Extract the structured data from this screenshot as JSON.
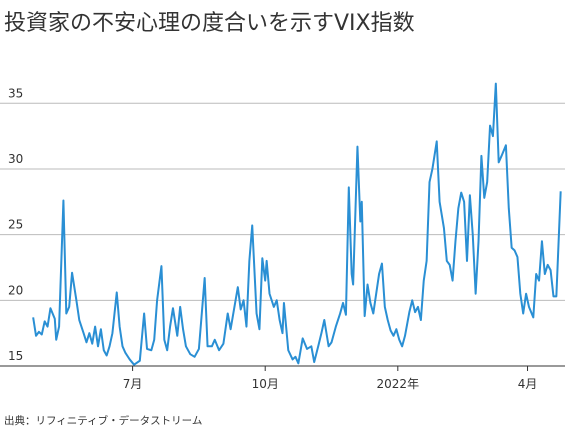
{
  "chart_data": {
    "type": "line",
    "title": "投資家の不安心理の度合いを示すVIX指数",
    "source": "出典：リフィニティブ・データストリーム",
    "x": [
      0,
      2,
      4,
      6,
      8,
      10,
      12,
      15,
      16,
      18,
      21,
      23,
      25,
      27,
      30,
      32,
      35,
      37,
      39,
      41,
      43,
      45,
      47,
      49,
      51,
      53,
      55,
      58,
      60,
      62,
      64,
      67,
      70,
      74,
      77,
      79,
      82,
      84,
      86,
      89,
      91,
      93,
      95,
      97,
      100,
      102,
      104,
      106,
      109,
      112,
      115,
      119,
      121,
      124,
      126,
      129,
      132,
      135,
      137,
      142,
      144,
      146,
      148,
      150,
      152,
      155,
      157,
      159,
      161,
      162,
      164,
      167,
      169,
      171,
      173,
      174,
      177,
      180,
      182,
      184,
      187,
      190,
      193,
      195,
      198,
      200,
      202,
      205,
      207,
      210,
      213,
      215,
      217,
      219,
      221,
      222,
      225,
      227,
      228,
      230,
      232,
      234,
      236,
      240,
      242,
      244,
      246,
      248,
      250,
      252,
      254,
      256,
      258,
      261,
      263,
      265,
      267,
      269,
      271,
      273,
      275,
      277,
      280,
      282,
      285,
      287,
      289,
      291,
      293,
      295,
      297,
      299,
      301,
      303,
      305,
      307,
      309,
      311,
      313,
      315,
      317,
      319,
      321,
      323,
      325,
      328,
      330,
      332,
      334,
      336,
      338,
      340,
      342,
      344,
      347,
      349,
      351,
      353,
      355,
      357,
      359,
      361,
      363,
      366
    ],
    "series": [
      {
        "name": "VIX",
        "color": "#2a8fd4",
        "values": [
          18.7,
          17.3,
          17.6,
          17.4,
          18.4,
          18,
          19.4,
          18.6,
          17,
          18,
          27.6,
          19,
          19.5,
          22.1,
          20,
          18.5,
          17.5,
          16.8,
          17.5,
          16.7,
          18,
          16.5,
          17.8,
          16.2,
          15.8,
          16.5,
          17.5,
          20.6,
          18,
          16.5,
          16,
          15.5,
          15.1,
          15.4,
          19,
          16.3,
          16.2,
          17,
          20,
          22.6,
          17,
          16.2,
          18,
          19.4,
          17.3,
          19.5,
          17.8,
          16.5,
          15.9,
          15.7,
          16.3,
          21.7,
          16.5,
          16.5,
          17,
          16.2,
          16.7,
          19,
          17.8,
          21,
          19.3,
          20,
          18,
          23,
          25.7,
          19,
          17.8,
          23.2,
          21.5,
          23,
          20.5,
          19.5,
          20,
          18.5,
          17.5,
          19.8,
          16.2,
          15.5,
          15.7,
          15.2,
          17.1,
          16.3,
          16.5,
          15.3,
          16.6,
          17.5,
          18.5,
          16.5,
          16.8,
          18,
          19,
          19.8,
          18.9,
          28.6,
          22,
          21.2,
          31.7,
          26,
          27.5,
          18.8,
          21.2,
          19.8,
          19,
          22,
          22.8,
          19.5,
          18.5,
          17.7,
          17.3,
          17.8,
          17,
          16.5,
          17.3,
          19.1,
          20,
          19.1,
          19.5,
          18.5,
          21.5,
          23,
          29,
          30,
          32.1,
          27.5,
          25.5,
          23,
          22.7,
          21.5,
          24.5,
          27,
          28.2,
          27.5,
          23,
          28,
          25,
          20.5,
          24.5,
          31,
          27.8,
          29,
          33.3,
          32.5,
          36.5,
          30.5,
          31,
          31.8,
          27,
          24,
          23.8,
          23.3,
          20.5,
          19,
          20.5,
          19.5,
          18.7,
          22,
          21.5,
          24.5,
          22,
          22.7,
          22.3,
          20.3,
          20.3,
          28.3
        ]
      }
    ],
    "xlim": [
      -23,
      369
    ],
    "xticks": [
      {
        "value": 69,
        "label": "7月"
      },
      {
        "value": 161,
        "label": "10月"
      },
      {
        "value": 253,
        "label": "2022年"
      },
      {
        "value": 343,
        "label": "4月"
      }
    ],
    "ylim": [
      15,
      37
    ],
    "yticks": [
      15,
      20,
      25,
      30,
      35
    ],
    "grid": true
  }
}
